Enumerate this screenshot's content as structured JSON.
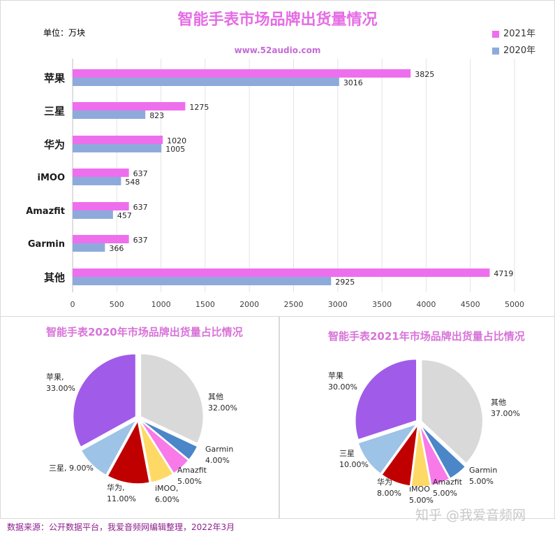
{
  "header": {
    "title": "智能手表市场品牌出货量情况",
    "unit": "单位：万块",
    "website": "www.52audio.com"
  },
  "colors": {
    "y2021": "#ee6fee",
    "y2020": "#8eaadb"
  },
  "chart_data": [
    {
      "type": "bar",
      "orientation": "horizontal",
      "categories": [
        "苹果",
        "三星",
        "华为",
        "iMOO",
        "Amazfit",
        "Garmin",
        "其他"
      ],
      "series": [
        {
          "name": "2021年",
          "values": [
            3825,
            1275,
            1020,
            637,
            637,
            637,
            4719
          ]
        },
        {
          "name": "2020年",
          "values": [
            3016,
            823,
            1005,
            548,
            457,
            366,
            2925
          ]
        }
      ],
      "xticks": [
        "0",
        "500",
        "1000",
        "1500",
        "2000",
        "2500",
        "3000",
        "3500",
        "4000",
        "4500",
        "5000"
      ],
      "xlim": [
        0,
        5000
      ]
    },
    {
      "type": "pie",
      "title": "智能手表2020年市场品牌出货量占比情况",
      "slices": [
        {
          "label": "其他",
          "pct": "32.00%",
          "value": 32,
          "color": "#d9d9d9"
        },
        {
          "label": "Garmin",
          "pct": "4.00%",
          "value": 4,
          "color": "#4a86c8"
        },
        {
          "label": "Amazfit",
          "pct": "5.00%",
          "value": 5,
          "color": "#f77ae8"
        },
        {
          "label": "iMOO,",
          "pct": "6.00%",
          "value": 6,
          "color": "#ffd966"
        },
        {
          "label": "华为,",
          "pct": "11.00%",
          "value": 11,
          "color": "#c00000"
        },
        {
          "label": "三星,",
          "pct": "9.00%",
          "value": 9,
          "color": "#9dc3e6"
        },
        {
          "label": "苹果,",
          "pct": "33.00%",
          "value": 33,
          "color": "#a05ce8"
        }
      ]
    },
    {
      "type": "pie",
      "title": "智能手表2021年市场品牌出货量占比情况",
      "slices": [
        {
          "label": "其他",
          "pct": "37.00%",
          "value": 37,
          "color": "#d9d9d9"
        },
        {
          "label": "Garmin",
          "pct": "5.00%",
          "value": 5,
          "color": "#4a86c8"
        },
        {
          "label": "Amazfit",
          "pct": "5.00%",
          "value": 5,
          "color": "#f77ae8"
        },
        {
          "label": "iMOO",
          "pct": "5.00%",
          "value": 5,
          "color": "#ffd966"
        },
        {
          "label": "华为",
          "pct": "8.00%",
          "value": 8,
          "color": "#c00000"
        },
        {
          "label": "三星",
          "pct": "10.00%",
          "value": 10,
          "color": "#9dc3e6"
        },
        {
          "label": "苹果",
          "pct": "30.00%",
          "value": 30,
          "color": "#a05ce8"
        }
      ]
    }
  ],
  "footer": {
    "source": "数据来源：公开数据平台，我爱音频网编辑整理，2022年3月",
    "watermark": "知乎 @我爱音频网"
  }
}
